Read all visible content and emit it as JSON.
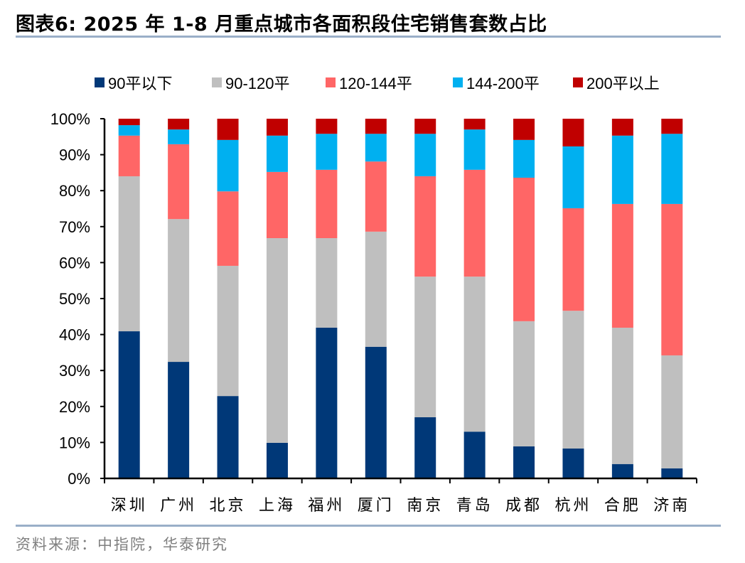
{
  "title": "图表6:  2025 年 1-8 月重点城市各面积段住宅销售套数占比",
  "source": "资料来源：中指院，华泰研究",
  "chart_data": {
    "type": "bar",
    "stacked": true,
    "title": "2025 年 1-8 月重点城市各面积段住宅销售套数占比",
    "xlabel": "",
    "ylabel": "",
    "ylim": [
      0,
      100
    ],
    "yticks": [
      0,
      10,
      20,
      30,
      40,
      50,
      60,
      70,
      80,
      90,
      100
    ],
    "ytick_labels": [
      "0%",
      "10%",
      "20%",
      "30%",
      "40%",
      "50%",
      "60%",
      "70%",
      "80%",
      "90%",
      "100%"
    ],
    "grid": false,
    "legend_position": "top",
    "categories": [
      "深圳",
      "广州",
      "北京",
      "上海",
      "福州",
      "厦门",
      "南京",
      "青岛",
      "成都",
      "杭州",
      "合肥",
      "济南"
    ],
    "series": [
      {
        "name": "90平以下",
        "color": "#003878",
        "values": [
          40.9,
          32.4,
          22.9,
          9.9,
          41.9,
          36.6,
          17.0,
          13.0,
          8.9,
          8.3,
          4.0,
          2.8
        ]
      },
      {
        "name": "90-120平",
        "color": "#bfbfbf",
        "values": [
          43.1,
          39.7,
          36.2,
          56.9,
          24.9,
          32.0,
          39.1,
          43.1,
          34.8,
          38.3,
          37.9,
          31.4
        ]
      },
      {
        "name": "120-144平",
        "color": "#ff6666",
        "values": [
          11.3,
          20.8,
          20.7,
          18.4,
          19.0,
          19.5,
          27.9,
          29.7,
          39.9,
          28.5,
          34.4,
          42.1
        ]
      },
      {
        "name": "144-200平",
        "color": "#00b0f0",
        "values": [
          2.9,
          4.1,
          14.3,
          10.1,
          10.0,
          7.7,
          11.8,
          11.2,
          10.5,
          17.2,
          19.0,
          19.5
        ]
      },
      {
        "name": "200平以上",
        "color": "#c00000",
        "values": [
          1.8,
          3.0,
          5.9,
          4.7,
          4.2,
          4.2,
          4.2,
          3.0,
          5.9,
          7.7,
          4.7,
          4.2
        ]
      }
    ]
  }
}
